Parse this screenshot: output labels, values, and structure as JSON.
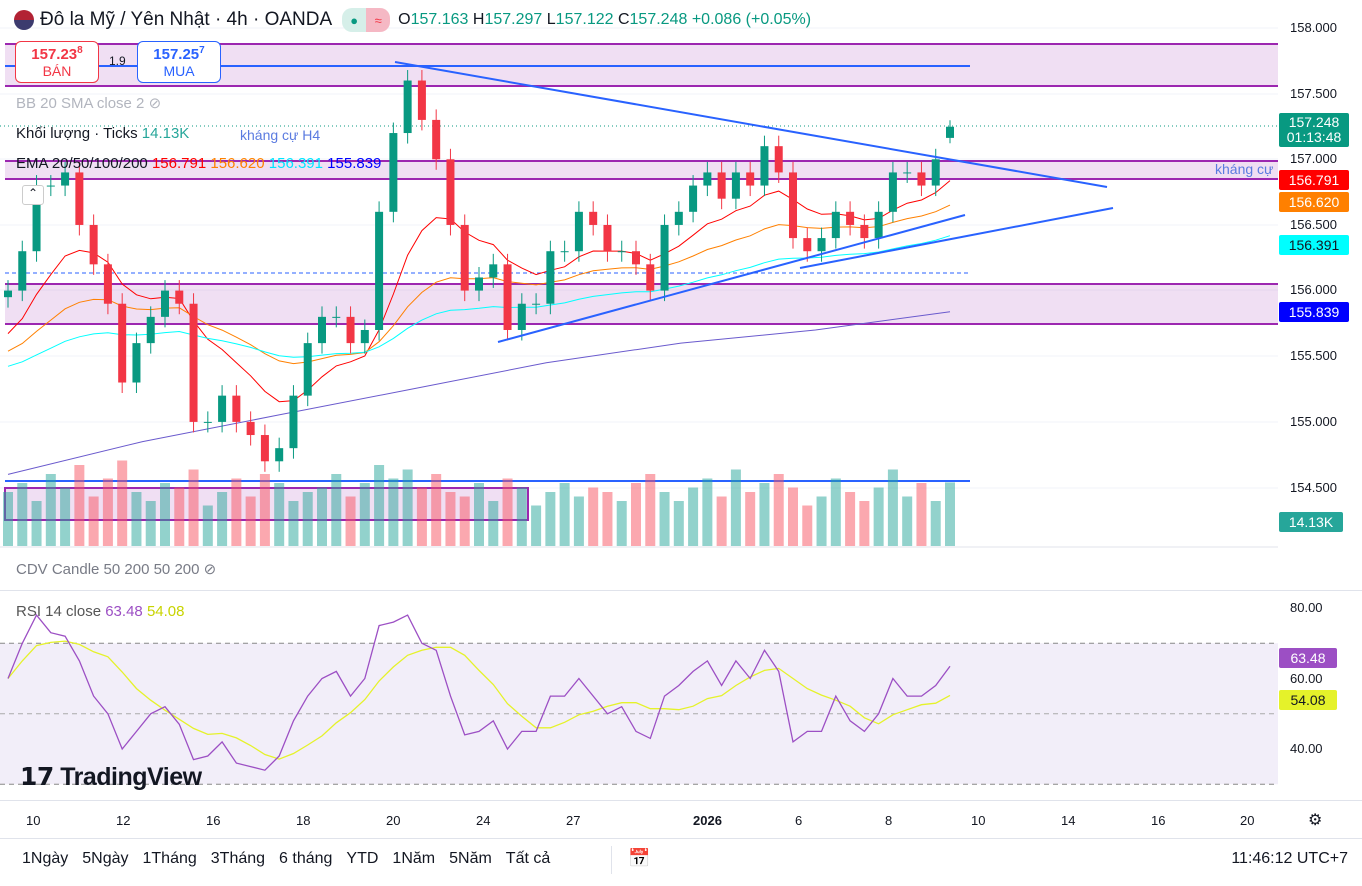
{
  "header": {
    "symbol": "Đô la Mỹ / Yên Nhật · 4h · OANDA",
    "o_label": "O",
    "o": "157.163",
    "h_label": "H",
    "h": "157.297",
    "l_label": "L",
    "l": "157.122",
    "c_label": "C",
    "c": "157.248",
    "change": "+0.086 (+0.05%)",
    "wave_icon": "≈"
  },
  "trade": {
    "sell_price": "157.23",
    "sell_sup": "8",
    "sell_label": "BÁN",
    "spread": "1.9",
    "buy_price": "157.25",
    "buy_sup": "7",
    "buy_label": "MUA"
  },
  "legends": {
    "bb": "BB 20 SMA close 2",
    "volume": "Khối lượng · Ticks",
    "volume_value": "14.13K",
    "ema": "EMA 20/50/100/200",
    "ema20": "156.791",
    "ema50": "156.620",
    "ema100": "156.391",
    "ema200": "155.839",
    "cdv": "CDV Candle 50 200 50 200",
    "rsi": "RSI 14 close",
    "rsi_value": "63.48",
    "rsi_ma": "54.08"
  },
  "annotations": {
    "resistance_h4": "kháng cự H4",
    "resistance": "kháng cự"
  },
  "price_axis": {
    "ticks": [
      "158.000",
      "157.500",
      "157.000",
      "156.500",
      "156.000",
      "155.500",
      "155.000",
      "154.500"
    ],
    "last_price": "157.248",
    "countdown": "01:13:48",
    "ema20": "156.791",
    "ema50": "156.620",
    "ema100": "156.391",
    "ema200": "155.839",
    "volume": "14.13K"
  },
  "rsi_axis": {
    "ticks": [
      "80.00",
      "60.00",
      "40.00"
    ],
    "rsi": "63.48",
    "ma": "54.08"
  },
  "time_axis": [
    "10",
    "12",
    "16",
    "18",
    "20",
    "24",
    "27",
    "2026",
    "6",
    "8",
    "10",
    "14",
    "16",
    "20"
  ],
  "ranges": [
    "1Ngày",
    "5Ngày",
    "1Tháng",
    "3Tháng",
    "6 tháng",
    "YTD",
    "1Năm",
    "5Năm",
    "Tất cả"
  ],
  "clock": "11:46:12 UTC+7",
  "logo": "TradingView",
  "colors": {
    "up": "#089981",
    "down": "#f23645",
    "ema20": "#ff0000",
    "ema50": "#ff8000",
    "ema100": "#00ffff",
    "ema200": "#0000ff",
    "zone": "#9c27b0",
    "line": "#2962ff",
    "rsi": "#9c4fc4",
    "rsi_ma": "#e5f22a"
  },
  "chart_data": {
    "type": "candlestick",
    "title": "USD/JPY 4h OANDA",
    "ylim": [
      154.3,
      158.1
    ],
    "closes": [
      156.0,
      156.3,
      156.8,
      156.8,
      156.9,
      156.5,
      156.2,
      155.9,
      155.3,
      155.6,
      155.8,
      156.0,
      155.9,
      155.0,
      155.0,
      155.2,
      155.0,
      154.9,
      154.7,
      154.8,
      155.2,
      155.6,
      155.8,
      155.8,
      155.6,
      155.7,
      156.6,
      157.2,
      157.6,
      157.3,
      157.0,
      156.5,
      156.0,
      156.1,
      156.2,
      155.7,
      155.9,
      155.9,
      156.3,
      156.3,
      156.6,
      156.5,
      156.3,
      156.3,
      156.2,
      156.0,
      156.5,
      156.6,
      156.8,
      156.9,
      156.7,
      156.9,
      156.8,
      157.1,
      156.9,
      156.4,
      156.3,
      156.4,
      156.6,
      156.5,
      156.4,
      156.6,
      156.9,
      156.9,
      156.8,
      157.0,
      157.248
    ],
    "last_ohlc": [
      157.163,
      157.297,
      157.122,
      157.248
    ],
    "volumes_k": [
      12,
      14,
      10,
      16,
      13,
      18,
      11,
      15,
      19,
      12,
      10,
      14,
      13,
      17,
      9,
      12,
      15,
      11,
      16,
      14,
      10,
      12,
      13,
      16,
      11,
      14,
      18,
      15,
      17,
      13,
      16,
      12,
      11,
      14,
      10,
      15,
      13,
      9,
      12,
      14,
      11,
      13,
      12,
      10,
      14,
      16,
      12,
      10,
      13,
      15,
      11,
      17,
      12,
      14,
      16,
      13,
      9,
      11,
      15,
      12,
      10,
      13,
      17,
      11,
      14,
      10,
      14.13
    ],
    "ema200": [
      154.6,
      154.85,
      155.05,
      155.25,
      155.45,
      155.6,
      155.7,
      155.839
    ],
    "rsi": [
      60,
      70,
      78,
      73,
      72,
      65,
      55,
      50,
      40,
      45,
      50,
      52,
      47,
      37,
      38,
      42,
      36,
      35,
      34,
      38,
      48,
      55,
      60,
      62,
      55,
      60,
      75,
      76,
      78,
      70,
      68,
      55,
      44,
      45,
      48,
      40,
      45,
      45,
      55,
      55,
      60,
      55,
      50,
      52,
      45,
      43,
      55,
      58,
      62,
      65,
      58,
      65,
      60,
      68,
      62,
      42,
      45,
      45,
      55,
      48,
      45,
      50,
      60,
      55,
      55,
      58,
      63.48
    ],
    "rsi_range": [
      25,
      85
    ],
    "rsi_bands": [
      70,
      30
    ]
  }
}
